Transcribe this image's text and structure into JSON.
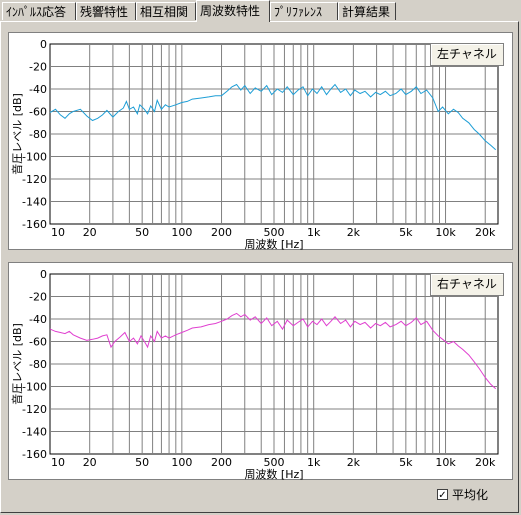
{
  "tabs": [
    "ｲﾝﾊﾟﾙｽ応答",
    "残響特性",
    "相互相関",
    "周波数特性",
    "ﾌﾟﾘﾌｧﾚﾝｽ",
    "計算結果"
  ],
  "active_tab": 3,
  "averaging": {
    "label": "平均化",
    "checked": true
  },
  "colors": {
    "left_channel": "#1e9ed6",
    "right_channel": "#e040d0",
    "grid": "#808080"
  },
  "chart_data": [
    {
      "type": "line",
      "channel_button": "左チャネル",
      "xlabel": "周波数 [Hz]",
      "ylabel": "音圧レベル [dB]",
      "xscale": "log",
      "xlim": [
        10,
        25000
      ],
      "ylim": [
        -160,
        0
      ],
      "x_ticks": [
        {
          "v": 10,
          "label": "10"
        },
        {
          "v": 20,
          "label": "20"
        },
        {
          "v": 50,
          "label": "50"
        },
        {
          "v": 100,
          "label": "100"
        },
        {
          "v": 200,
          "label": "200"
        },
        {
          "v": 500,
          "label": "500"
        },
        {
          "v": 1000,
          "label": "1k"
        },
        {
          "v": 2000,
          "label": "2k"
        },
        {
          "v": 5000,
          "label": "5k"
        },
        {
          "v": 10000,
          "label": "10k"
        },
        {
          "v": 20000,
          "label": "20k"
        }
      ],
      "y_ticks": [
        0,
        -20,
        -40,
        -60,
        -80,
        -100,
        -120,
        -140,
        -160
      ],
      "grid": true,
      "series": [
        {
          "color": "#1e9ed6",
          "points": [
            [
              10,
              -61
            ],
            [
              11,
              -58
            ],
            [
              12,
              -63
            ],
            [
              13,
              -66
            ],
            [
              14,
              -62
            ],
            [
              15,
              -60
            ],
            [
              17,
              -58
            ],
            [
              19,
              -64
            ],
            [
              21,
              -68
            ],
            [
              23,
              -66
            ],
            [
              25,
              -63
            ],
            [
              27,
              -59
            ],
            [
              30,
              -65
            ],
            [
              33,
              -60
            ],
            [
              36,
              -57
            ],
            [
              38,
              -51
            ],
            [
              40,
              -58
            ],
            [
              43,
              -56
            ],
            [
              46,
              -62
            ],
            [
              48,
              -54
            ],
            [
              52,
              -58
            ],
            [
              55,
              -62
            ],
            [
              58,
              -55
            ],
            [
              62,
              -60
            ],
            [
              65,
              -50
            ],
            [
              70,
              -58
            ],
            [
              75,
              -54
            ],
            [
              80,
              -56
            ],
            [
              90,
              -54
            ],
            [
              100,
              -52
            ],
            [
              110,
              -51
            ],
            [
              120,
              -49
            ],
            [
              140,
              -48
            ],
            [
              160,
              -47
            ],
            [
              180,
              -46
            ],
            [
              200,
              -46
            ],
            [
              220,
              -42
            ],
            [
              240,
              -38
            ],
            [
              260,
              -36
            ],
            [
              280,
              -41
            ],
            [
              300,
              -37
            ],
            [
              330,
              -44
            ],
            [
              360,
              -39
            ],
            [
              400,
              -42
            ],
            [
              440,
              -37
            ],
            [
              480,
              -45
            ],
            [
              530,
              -40
            ],
            [
              580,
              -43
            ],
            [
              630,
              -38
            ],
            [
              700,
              -45
            ],
            [
              760,
              -41
            ],
            [
              830,
              -38
            ],
            [
              900,
              -46
            ],
            [
              980,
              -40
            ],
            [
              1060,
              -44
            ],
            [
              1150,
              -38
            ],
            [
              1250,
              -45
            ],
            [
              1350,
              -40
            ],
            [
              1450,
              -36
            ],
            [
              1600,
              -43
            ],
            [
              1750,
              -40
            ],
            [
              1900,
              -46
            ],
            [
              2050,
              -41
            ],
            [
              2250,
              -44
            ],
            [
              2450,
              -42
            ],
            [
              2700,
              -47
            ],
            [
              2950,
              -43
            ],
            [
              3200,
              -45
            ],
            [
              3500,
              -42
            ],
            [
              3800,
              -46
            ],
            [
              4200,
              -44
            ],
            [
              4600,
              -40
            ],
            [
              5000,
              -45
            ],
            [
              5500,
              -42
            ],
            [
              6000,
              -38
            ],
            [
              6500,
              -44
            ],
            [
              7200,
              -41
            ],
            [
              8000,
              -48
            ],
            [
              8800,
              -60
            ],
            [
              9500,
              -56
            ],
            [
              10500,
              -62
            ],
            [
              11500,
              -58
            ],
            [
              12500,
              -61
            ],
            [
              13500,
              -66
            ],
            [
              15000,
              -70
            ],
            [
              16500,
              -76
            ],
            [
              18000,
              -80
            ],
            [
              20000,
              -86
            ],
            [
              22000,
              -90
            ],
            [
              24000,
              -94
            ]
          ]
        }
      ]
    },
    {
      "type": "line",
      "channel_button": "右チャネル",
      "xlabel": "周波数 [Hz]",
      "ylabel": "音圧レベル [dB]",
      "xscale": "log",
      "xlim": [
        10,
        25000
      ],
      "ylim": [
        -160,
        0
      ],
      "x_ticks": [
        {
          "v": 10,
          "label": "10"
        },
        {
          "v": 20,
          "label": "20"
        },
        {
          "v": 50,
          "label": "50"
        },
        {
          "v": 100,
          "label": "100"
        },
        {
          "v": 200,
          "label": "200"
        },
        {
          "v": 500,
          "label": "500"
        },
        {
          "v": 1000,
          "label": "1k"
        },
        {
          "v": 2000,
          "label": "2k"
        },
        {
          "v": 5000,
          "label": "5k"
        },
        {
          "v": 10000,
          "label": "10k"
        },
        {
          "v": 20000,
          "label": "20k"
        }
      ],
      "y_ticks": [
        0,
        -20,
        -40,
        -60,
        -80,
        -100,
        -120,
        -140,
        -160
      ],
      "grid": true,
      "series": [
        {
          "color": "#e040d0",
          "points": [
            [
              10,
              -49
            ],
            [
              11,
              -51
            ],
            [
              12,
              -52
            ],
            [
              13,
              -53
            ],
            [
              14,
              -51
            ],
            [
              15,
              -54
            ],
            [
              17,
              -57
            ],
            [
              19,
              -59
            ],
            [
              21,
              -58
            ],
            [
              23,
              -57
            ],
            [
              25,
              -55
            ],
            [
              27,
              -54
            ],
            [
              29,
              -65
            ],
            [
              31,
              -60
            ],
            [
              34,
              -56
            ],
            [
              37,
              -52
            ],
            [
              40,
              -60
            ],
            [
              43,
              -57
            ],
            [
              46,
              -62
            ],
            [
              49,
              -55
            ],
            [
              52,
              -60
            ],
            [
              55,
              -65
            ],
            [
              58,
              -55
            ],
            [
              62,
              -60
            ],
            [
              65,
              -51
            ],
            [
              70,
              -57
            ],
            [
              75,
              -55
            ],
            [
              80,
              -57
            ],
            [
              90,
              -54
            ],
            [
              100,
              -52
            ],
            [
              110,
              -50
            ],
            [
              120,
              -48
            ],
            [
              140,
              -47
            ],
            [
              160,
              -45
            ],
            [
              180,
              -44
            ],
            [
              200,
              -42
            ],
            [
              220,
              -40
            ],
            [
              240,
              -37
            ],
            [
              260,
              -35
            ],
            [
              280,
              -38
            ],
            [
              300,
              -36
            ],
            [
              330,
              -41
            ],
            [
              360,
              -38
            ],
            [
              400,
              -44
            ],
            [
              440,
              -39
            ],
            [
              480,
              -46
            ],
            [
              530,
              -42
            ],
            [
              580,
              -49
            ],
            [
              630,
              -41
            ],
            [
              700,
              -46
            ],
            [
              760,
              -43
            ],
            [
              830,
              -40
            ],
            [
              900,
              -47
            ],
            [
              980,
              -42
            ],
            [
              1060,
              -45
            ],
            [
              1150,
              -40
            ],
            [
              1250,
              -46
            ],
            [
              1350,
              -42
            ],
            [
              1450,
              -38
            ],
            [
              1600,
              -44
            ],
            [
              1750,
              -41
            ],
            [
              1900,
              -47
            ],
            [
              2050,
              -42
            ],
            [
              2250,
              -45
            ],
            [
              2450,
              -43
            ],
            [
              2700,
              -48
            ],
            [
              2950,
              -44
            ],
            [
              3200,
              -46
            ],
            [
              3500,
              -43
            ],
            [
              3800,
              -47
            ],
            [
              4200,
              -45
            ],
            [
              4600,
              -42
            ],
            [
              5000,
              -46
            ],
            [
              5500,
              -43
            ],
            [
              6000,
              -39
            ],
            [
              6500,
              -45
            ],
            [
              7200,
              -42
            ],
            [
              8000,
              -50
            ],
            [
              8800,
              -55
            ],
            [
              9500,
              -58
            ],
            [
              10500,
              -62
            ],
            [
              11500,
              -60
            ],
            [
              12500,
              -64
            ],
            [
              13500,
              -67
            ],
            [
              15000,
              -72
            ],
            [
              16500,
              -78
            ],
            [
              18000,
              -84
            ],
            [
              20000,
              -92
            ],
            [
              22000,
              -98
            ],
            [
              24000,
              -102
            ]
          ]
        }
      ]
    }
  ]
}
